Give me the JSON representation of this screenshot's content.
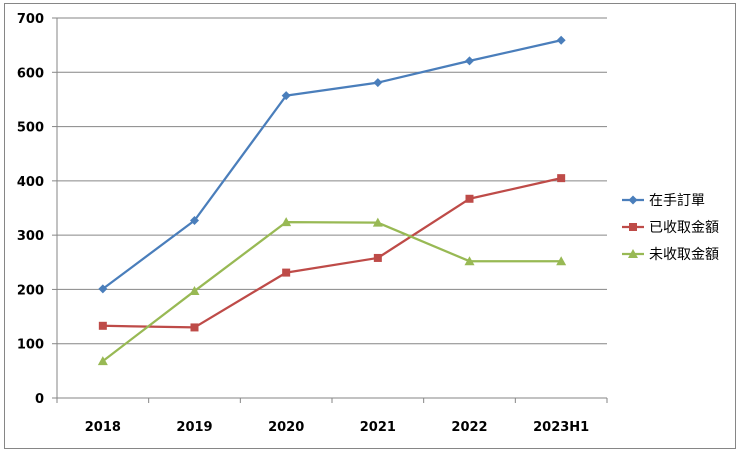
{
  "chart_data": {
    "type": "line",
    "categories": [
      "2018",
      "2019",
      "2020",
      "2021",
      "2022",
      "2023H1"
    ],
    "series": [
      {
        "name": "在手訂單",
        "values": [
          201,
          327,
          557,
          581,
          621,
          659
        ],
        "color": "#4a7ebb",
        "marker": "diamond"
      },
      {
        "name": "已收取金額",
        "values": [
          133,
          130,
          231,
          258,
          367,
          405
        ],
        "color": "#be4b48",
        "marker": "square"
      },
      {
        "name": "未收取金額",
        "values": [
          68,
          197,
          324,
          323,
          252,
          252
        ],
        "color": "#98b954",
        "marker": "triangle"
      }
    ],
    "ylim": [
      0,
      700
    ],
    "yticks": [
      0,
      100,
      200,
      300,
      400,
      500,
      600,
      700
    ],
    "grid": true,
    "legend": "right"
  }
}
